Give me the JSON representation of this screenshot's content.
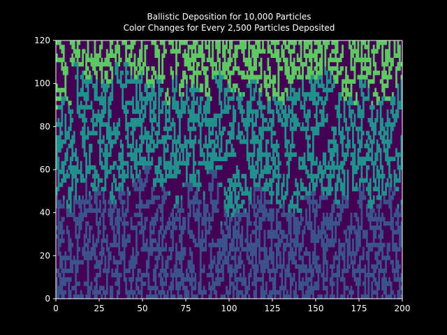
{
  "chart_data": {
    "type": "heatmap",
    "title": "Ballistic Deposition for 10,000 Particles",
    "subtitle": "Color Changes for Every 2,500 Particles Deposited",
    "xlabel": "",
    "ylabel": "",
    "xlim": [
      0,
      200
    ],
    "ylim": [
      0,
      120
    ],
    "x_ticks": [
      0,
      25,
      50,
      75,
      100,
      125,
      150,
      175,
      200
    ],
    "y_ticks": [
      0,
      20,
      40,
      60,
      80,
      100,
      120
    ],
    "grid": false,
    "lattice_width": 200,
    "particles_total": 10000,
    "particles_per_color": 2500,
    "background_color": "#440154",
    "band_colors": [
      "#3b528b",
      "#21918c",
      "#5ec962",
      "#fde725"
    ],
    "approx_surface_height": 100
  }
}
